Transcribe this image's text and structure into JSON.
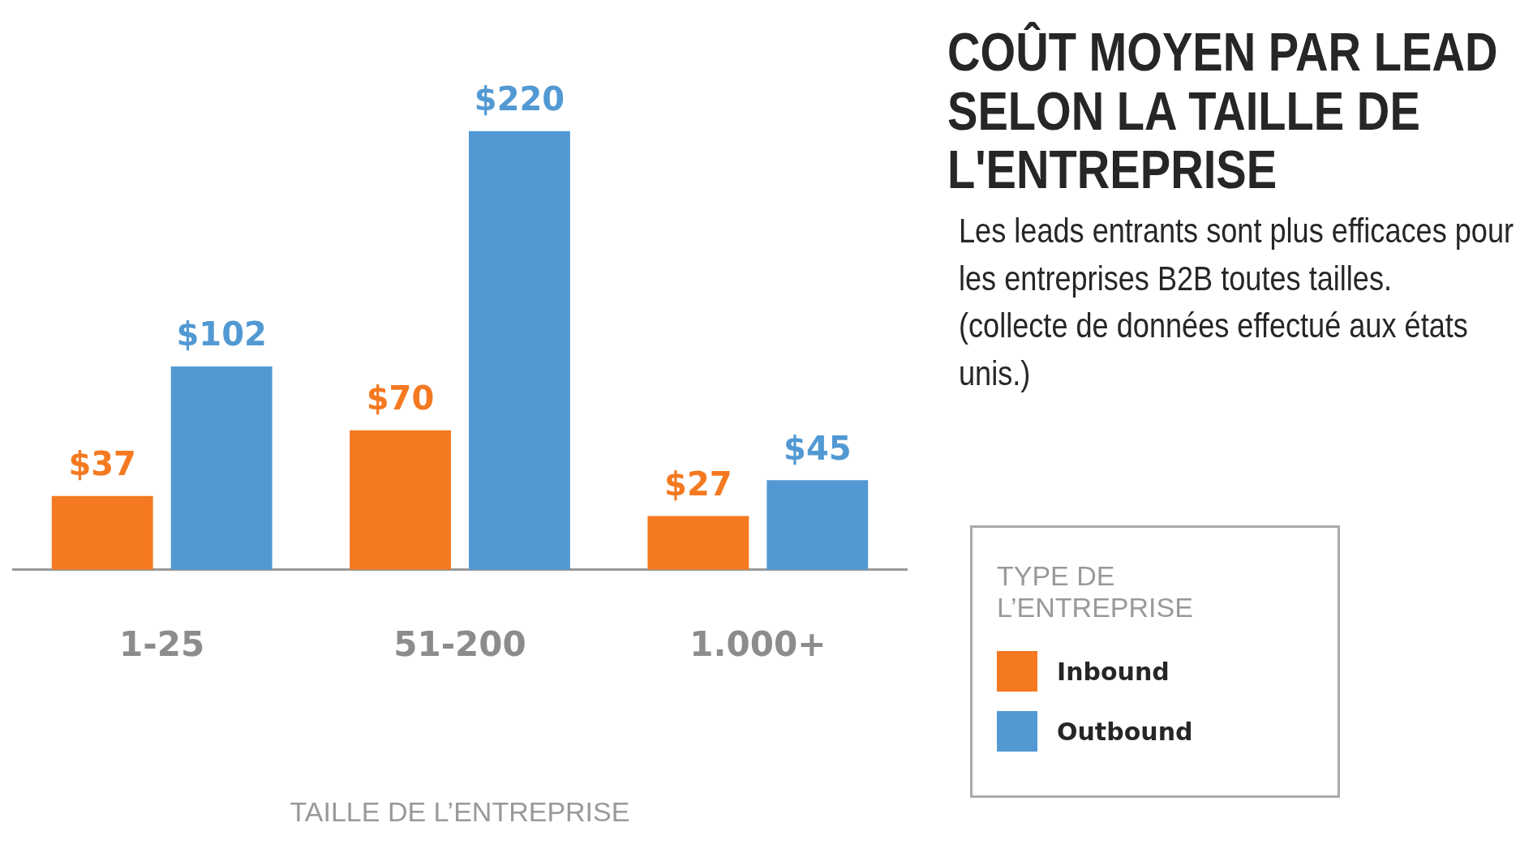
{
  "chart_data": {
    "type": "bar",
    "title": "COÛT MOYEN PAR LEAD SELON LA TAILLE DE L'ENTREPRISE",
    "subtitle": "Les leads entrants sont plus efficaces pour les entreprises B2B toutes tailles.",
    "annotations": [
      "(collecte de données effectué aux états unis.)"
    ],
    "xlabel": "TAILLE DE L’ENTREPRISE",
    "legend_title": "TYPE DE L’ENTREPRISE",
    "categories": [
      "1-25",
      "51-200",
      "1.000+"
    ],
    "series": [
      {
        "name": "Inbound",
        "color": "#f47920",
        "values": [
          37,
          70,
          27
        ],
        "value_labels": [
          "$37",
          "$70",
          "$27"
        ]
      },
      {
        "name": "Outbound",
        "color": "#5299d3",
        "values": [
          102,
          220,
          45
        ],
        "value_labels": [
          "$102",
          "$220",
          "$45"
        ]
      }
    ],
    "legend": "right",
    "grid": false
  }
}
